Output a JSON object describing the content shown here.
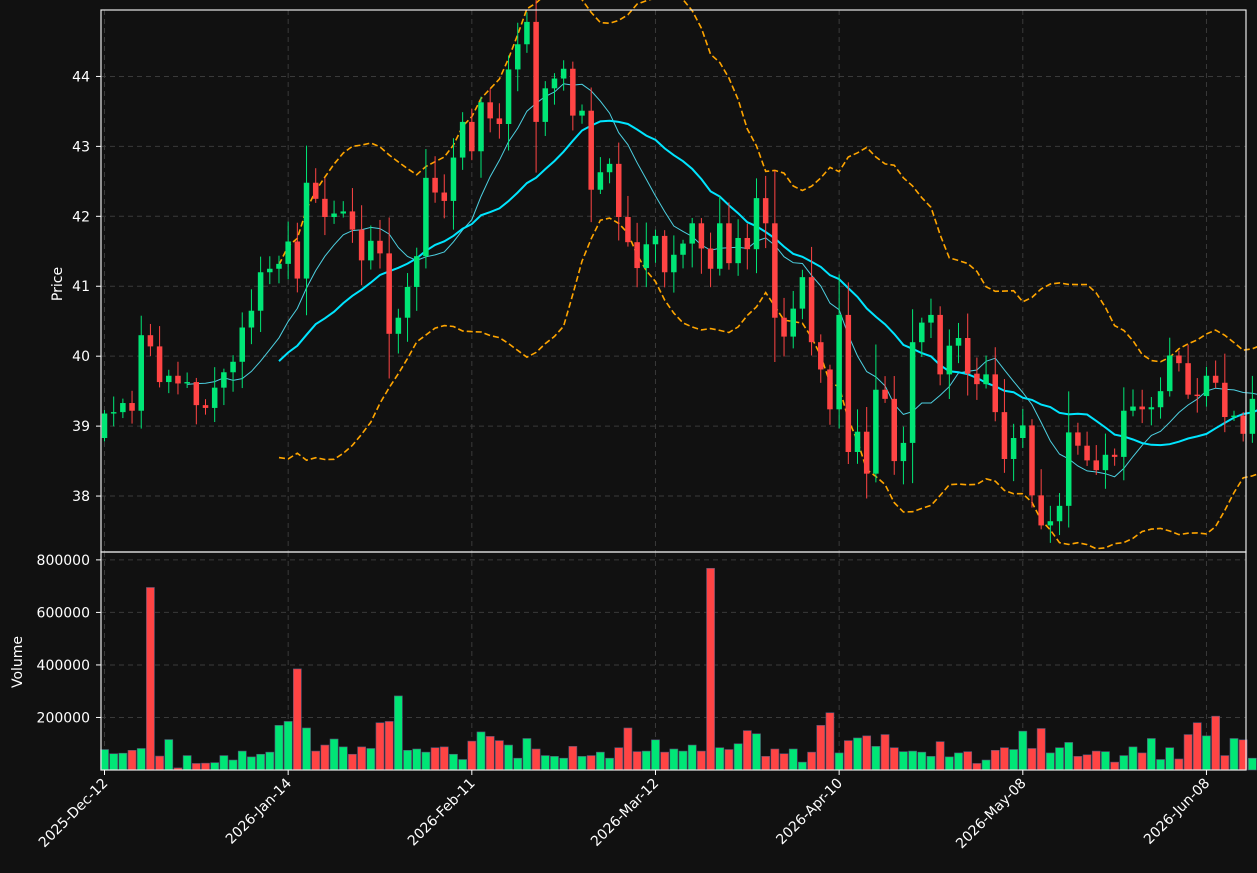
{
  "chart_data": {
    "type": "candlestick",
    "panels": [
      "price",
      "volume"
    ],
    "ylabel_price": "Price",
    "ylabel_volume": "Volume",
    "price_ylim": [
      37.2,
      44.95
    ],
    "price_yticks": [
      38,
      39,
      40,
      41,
      42,
      43,
      44
    ],
    "volume_ylim": [
      0,
      830000
    ],
    "volume_yticks": [
      200000,
      400000,
      600000,
      800000
    ],
    "xtick_labels": [
      "2025-Dec-12",
      "2026-Jan-14",
      "2026-Feb-11",
      "2026-Mar-12",
      "2026-Apr-10",
      "2026-May-08",
      "2026-Jun-08"
    ],
    "xtick_index": [
      0,
      20,
      40,
      60,
      80,
      100,
      120
    ],
    "grid": true,
    "colors": {
      "background": "#111111",
      "up": "#00e676",
      "down": "#ff4444",
      "ma_long": "#00e5ff",
      "ma_short": "#4dd0e1",
      "bands": "#ffa500",
      "grid": "#3a3a3a",
      "text": "#ffffff"
    },
    "close": [
      39.18,
      39.2,
      39.33,
      39.22,
      40.3,
      40.14,
      39.63,
      39.72,
      39.61,
      39.63,
      39.3,
      39.26,
      39.55,
      39.77,
      39.92,
      40.41,
      40.65,
      41.2,
      41.25,
      41.32,
      41.64,
      41.11,
      42.48,
      42.25,
      41.99,
      42.04,
      42.07,
      41.81,
      41.37,
      41.65,
      41.47,
      40.32,
      40.55,
      40.99,
      41.43,
      42.55,
      42.34,
      42.22,
      42.84,
      43.35,
      42.93,
      43.63,
      43.4,
      43.32,
      44.1,
      44.46,
      44.78,
      43.35,
      43.83,
      43.97,
      44.11,
      43.44,
      43.51,
      42.38,
      42.63,
      42.75,
      41.99,
      41.63,
      41.26,
      41.6,
      41.72,
      41.2,
      41.45,
      41.61,
      41.9,
      41.54,
      41.25,
      41.9,
      41.33,
      41.69,
      41.53,
      42.26,
      41.9,
      40.55,
      40.28,
      40.68,
      41.13,
      40.2,
      39.81,
      39.24,
      40.59,
      38.63,
      38.92,
      38.32,
      39.52,
      39.39,
      38.5,
      38.76,
      40.2,
      40.48,
      40.59,
      39.74,
      40.15,
      40.26,
      39.75,
      39.6,
      39.74,
      39.2,
      38.53,
      38.83,
      39.01,
      38.01,
      37.58,
      37.64,
      37.86,
      38.91,
      38.72,
      38.51,
      38.37,
      38.59,
      38.56,
      39.22,
      39.28,
      39.24,
      39.27,
      39.5,
      40.01,
      39.9,
      39.45,
      39.43,
      39.72,
      39.62,
      39.13,
      39.15,
      38.89,
      39.39,
      39.75,
      39.17,
      39.96
    ],
    "volume": [
      78000,
      62000,
      64000,
      75000,
      82000,
      695000,
      53000,
      116000,
      8000,
      55000,
      25000,
      26000,
      28000,
      55000,
      38000,
      72000,
      50000,
      60000,
      68000,
      170000,
      185000,
      385000,
      160000,
      72000,
      95000,
      118000,
      88000,
      60000,
      88000,
      82000,
      180000,
      185000,
      282000,
      75000,
      80000,
      68000,
      85000,
      88000,
      60000,
      40000,
      110000,
      145000,
      128000,
      112000,
      95000,
      45000,
      120000,
      80000,
      55000,
      52000,
      45000,
      90000,
      52000,
      55000,
      68000,
      45000,
      85000,
      160000,
      70000,
      72000,
      115000,
      68000,
      80000,
      72000,
      95000,
      72000,
      768000,
      85000,
      78000,
      100000,
      150000,
      138000,
      52000,
      80000,
      62000,
      80000,
      30000,
      68000,
      170000,
      218000,
      65000,
      112000,
      122000,
      130000,
      90000,
      135000,
      85000,
      70000,
      72000,
      68000,
      52000,
      108000,
      50000,
      65000,
      70000,
      25000,
      38000,
      75000,
      85000,
      78000,
      148000,
      82000,
      158000,
      65000,
      85000,
      105000,
      52000,
      58000,
      72000,
      70000,
      30000,
      55000,
      88000,
      65000,
      120000,
      40000,
      85000,
      42000,
      135000,
      180000,
      130000,
      205000,
      55000,
      120000,
      115000,
      45000,
      100000,
      62000,
      118000
    ]
  }
}
